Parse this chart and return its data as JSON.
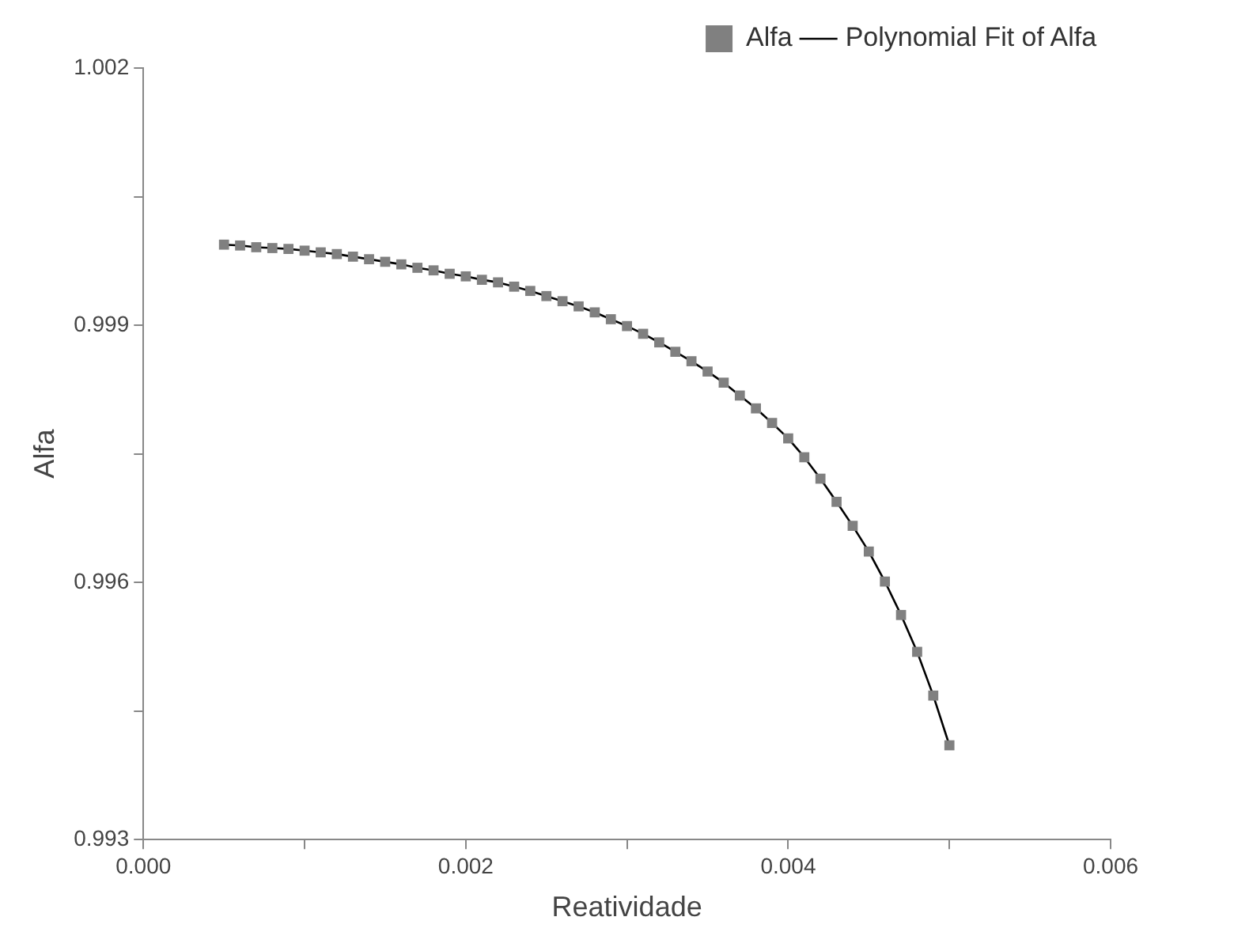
{
  "chart_data": {
    "type": "scatter",
    "xlabel": "Reatividade",
    "ylabel": "Alfa",
    "x": [
      0.0005,
      0.0006,
      0.0007,
      0.0008,
      0.0009,
      0.001,
      0.0011,
      0.0012,
      0.0013,
      0.0014,
      0.0015,
      0.0016,
      0.0017,
      0.0018,
      0.0019,
      0.002,
      0.0021,
      0.0022,
      0.0023,
      0.0024,
      0.0025,
      0.0026,
      0.0027,
      0.0028,
      0.0029,
      0.003,
      0.0031,
      0.0032,
      0.0033,
      0.0034,
      0.0035,
      0.0036,
      0.0037,
      0.0038,
      0.0039,
      0.004,
      0.0041,
      0.0042,
      0.0043,
      0.0044,
      0.0045,
      0.0046,
      0.0047,
      0.0048,
      0.0049,
      0.005
    ],
    "series": [
      {
        "name": "Alfa",
        "type": "scatter",
        "marker": "square",
        "color": "#808080",
        "values": [
          0.99994,
          0.99993,
          0.99991,
          0.9999,
          0.99989,
          0.99987,
          0.99985,
          0.99983,
          0.9998,
          0.99977,
          0.99974,
          0.99971,
          0.99967,
          0.99964,
          0.9996,
          0.99957,
          0.99953,
          0.9995,
          0.99945,
          0.9994,
          0.99934,
          0.99928,
          0.99922,
          0.99915,
          0.99907,
          0.99899,
          0.9989,
          0.9988,
          0.99869,
          0.99858,
          0.99846,
          0.99833,
          0.99818,
          0.99803,
          0.99786,
          0.99768,
          0.99746,
          0.99721,
          0.99694,
          0.99666,
          0.99636,
          0.99601,
          0.99562,
          0.99519,
          0.99468,
          0.9941
        ]
      },
      {
        "name": "Polynomial Fit of Alfa",
        "type": "line",
        "marker": "none",
        "line_style": "solid",
        "color": "#000000",
        "values": [
          0.99994,
          0.99993,
          0.99991,
          0.9999,
          0.99989,
          0.99987,
          0.99985,
          0.99983,
          0.9998,
          0.99977,
          0.99974,
          0.99971,
          0.99967,
          0.99964,
          0.9996,
          0.99957,
          0.99953,
          0.9995,
          0.99945,
          0.9994,
          0.99934,
          0.99928,
          0.99922,
          0.99915,
          0.99907,
          0.99899,
          0.9989,
          0.9988,
          0.99869,
          0.99858,
          0.99846,
          0.99833,
          0.99818,
          0.99803,
          0.99786,
          0.99768,
          0.99746,
          0.99721,
          0.99694,
          0.99666,
          0.99636,
          0.99601,
          0.99562,
          0.99519,
          0.99468,
          0.9941
        ]
      }
    ],
    "xlim": [
      0,
      0.006
    ],
    "xticks": [
      {
        "value": 0,
        "label": "0.000"
      },
      {
        "value": 0.001,
        "label": null
      },
      {
        "value": 0.002,
        "label": "0.002"
      },
      {
        "value": 0.003,
        "label": null
      },
      {
        "value": 0.004,
        "label": "0.004"
      },
      {
        "value": 0.005,
        "label": null
      },
      {
        "value": 0.006,
        "label": "0.006"
      }
    ],
    "ylim": [
      0.993,
      1.002
    ],
    "yticks": [
      {
        "value": 0.993,
        "label": "0.993"
      },
      {
        "value": 0.9945,
        "label": null
      },
      {
        "value": 0.996,
        "label": "0.996"
      },
      {
        "value": 0.9975,
        "label": null
      },
      {
        "value": 0.999,
        "label": "0.999"
      },
      {
        "value": 1.0005,
        "label": null
      },
      {
        "value": 1.002,
        "label": "1.002"
      }
    ],
    "grid": false,
    "legend": "top right"
  }
}
